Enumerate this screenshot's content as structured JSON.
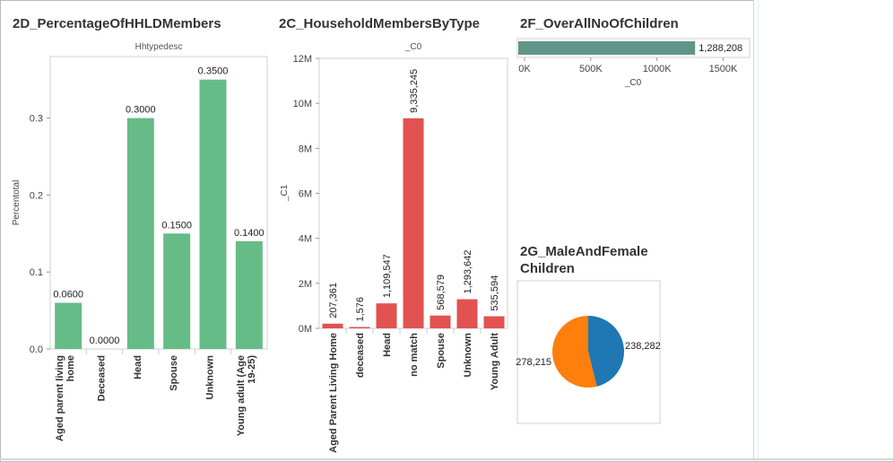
{
  "sheets": {
    "s2d": {
      "title": "2D_PercentageOfHHLDMembers"
    },
    "s2c": {
      "title": "2C_HouseholdMembersByType"
    },
    "s2f": {
      "title": "2F_OverAllNoOfChildren"
    },
    "s2g": {
      "title_line1": "2G_MaleAndFemale",
      "title_line2": "Children"
    }
  },
  "colors": {
    "green": "#66bc87",
    "red": "#e15251",
    "teal": "#609689",
    "blue": "#1f77b4",
    "orange": "#ff7f0e",
    "axis": "#555555",
    "frame": "#d0d0d0"
  },
  "chart_data": [
    {
      "id": "2D",
      "type": "bar",
      "title": "2D_PercentageOfHHLDMembers",
      "header": "Hhtypedesc",
      "ylabel": "Percentotal",
      "categories": [
        "Aged parent living home",
        "Deceased",
        "Head",
        "Spouse",
        "Unknown",
        "Young adult (Age 19-25)"
      ],
      "category_lines": [
        [
          "Aged parent living",
          "home"
        ],
        [
          "Deceased"
        ],
        [
          "Head"
        ],
        [
          "Spouse"
        ],
        [
          "Unknown"
        ],
        [
          "Young adult (Age",
          "19-25)"
        ]
      ],
      "values": [
        0.06,
        0.0,
        0.3,
        0.15,
        0.35,
        0.14
      ],
      "value_labels": [
        "0.0600",
        "0.0000",
        "0.3000",
        "0.1500",
        "0.3500",
        "0.1400"
      ],
      "yticks": [
        0.0,
        0.1,
        0.2,
        0.3
      ],
      "ytick_labels": [
        "0.0",
        "0.1",
        "0.2",
        "0.3"
      ],
      "ylim": [
        0,
        0.38
      ],
      "color": "#66bc87"
    },
    {
      "id": "2C",
      "type": "bar",
      "title": "2C_HouseholdMembersByType",
      "header": "_C0",
      "ylabel": "_C1",
      "categories": [
        "Aged Parent Living Home",
        "deceased",
        "Head",
        "no match",
        "Spouse",
        "Unknown",
        "Young Adult"
      ],
      "values": [
        207361,
        1576,
        1109547,
        9335245,
        568579,
        1293642,
        535594
      ],
      "value_labels": [
        "207,361",
        "1,576",
        "1,109,547",
        "9,335,245",
        "568,579",
        "1,293,642",
        "535,594"
      ],
      "yticks": [
        0,
        2000000,
        4000000,
        6000000,
        8000000,
        10000000,
        12000000
      ],
      "ytick_labels": [
        "0M",
        "2M",
        "4M",
        "6M",
        "8M",
        "10M",
        "12M"
      ],
      "ylim": [
        0,
        12000000
      ],
      "color": "#e15251"
    },
    {
      "id": "2F",
      "type": "bar",
      "orientation": "horizontal",
      "title": "2F_OverAllNoOfChildren",
      "xlabel": "_C0",
      "values": [
        1288208
      ],
      "value_labels": [
        "1,288,208"
      ],
      "xticks": [
        0,
        500000,
        1000000,
        1500000
      ],
      "xtick_labels": [
        "0K",
        "500K",
        "1000K",
        "1500K"
      ],
      "xlim": [
        0,
        1700000
      ],
      "color": "#609689"
    },
    {
      "id": "2G",
      "type": "pie",
      "title": "2G_MaleAndFemale Children",
      "values": [
        238282,
        278215
      ],
      "value_labels": [
        "238,282",
        "278,215"
      ],
      "colors": [
        "#1f77b4",
        "#ff7f0e"
      ]
    }
  ]
}
